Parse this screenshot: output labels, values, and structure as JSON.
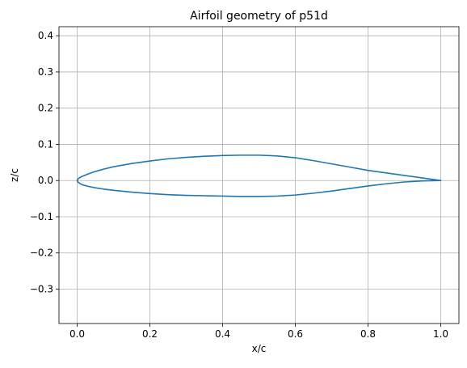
{
  "chart_data": {
    "type": "line",
    "title": "Airfoil geometry of p51d",
    "xlabel": "x/c",
    "ylabel": "z/c",
    "xlim": [
      -0.05,
      1.05
    ],
    "ylim": [
      -0.395,
      0.425
    ],
    "xticks": [
      0.0,
      0.2,
      0.4,
      0.6,
      0.8,
      1.0
    ],
    "xtick_labels": [
      "0.0",
      "0.2",
      "0.4",
      "0.6",
      "0.8",
      "1.0"
    ],
    "yticks": [
      -0.3,
      -0.2,
      -0.1,
      0.0,
      0.1,
      0.2,
      0.3,
      0.4
    ],
    "ytick_labels": [
      "−0.3",
      "−0.2",
      "−0.1",
      "0.0",
      "0.1",
      "0.2",
      "0.3",
      "0.4"
    ],
    "grid": true,
    "colors": {
      "series": "#1f77b4",
      "grid": "#b0b0b0",
      "axes": "#000000"
    },
    "series": [
      {
        "x": [
          1.0,
          0.95,
          0.9,
          0.85,
          0.8,
          0.75,
          0.7,
          0.65,
          0.6,
          0.55,
          0.5,
          0.45,
          0.4,
          0.35,
          0.3,
          0.25,
          0.2,
          0.15,
          0.1,
          0.075,
          0.05,
          0.03,
          0.015,
          0.007,
          0.002,
          0.0,
          0.002,
          0.007,
          0.015,
          0.03,
          0.05,
          0.075,
          0.1,
          0.15,
          0.2,
          0.25,
          0.3,
          0.35,
          0.4,
          0.45,
          0.5,
          0.55,
          0.6,
          0.65,
          0.7,
          0.75,
          0.8,
          0.85,
          0.9,
          0.95,
          1.0
        ],
        "y": [
          0.0,
          0.007,
          0.014,
          0.021,
          0.028,
          0.037,
          0.046,
          0.055,
          0.063,
          0.068,
          0.07,
          0.07,
          0.069,
          0.067,
          0.064,
          0.06,
          0.054,
          0.047,
          0.038,
          0.032,
          0.025,
          0.018,
          0.012,
          0.008,
          0.004,
          0.0,
          -0.004,
          -0.008,
          -0.012,
          -0.016,
          -0.02,
          -0.024,
          -0.027,
          -0.032,
          -0.036,
          -0.039,
          -0.041,
          -0.042,
          -0.043,
          -0.044,
          -0.044,
          -0.043,
          -0.04,
          -0.035,
          -0.029,
          -0.022,
          -0.015,
          -0.009,
          -0.004,
          -0.001,
          0.0
        ]
      }
    ]
  }
}
